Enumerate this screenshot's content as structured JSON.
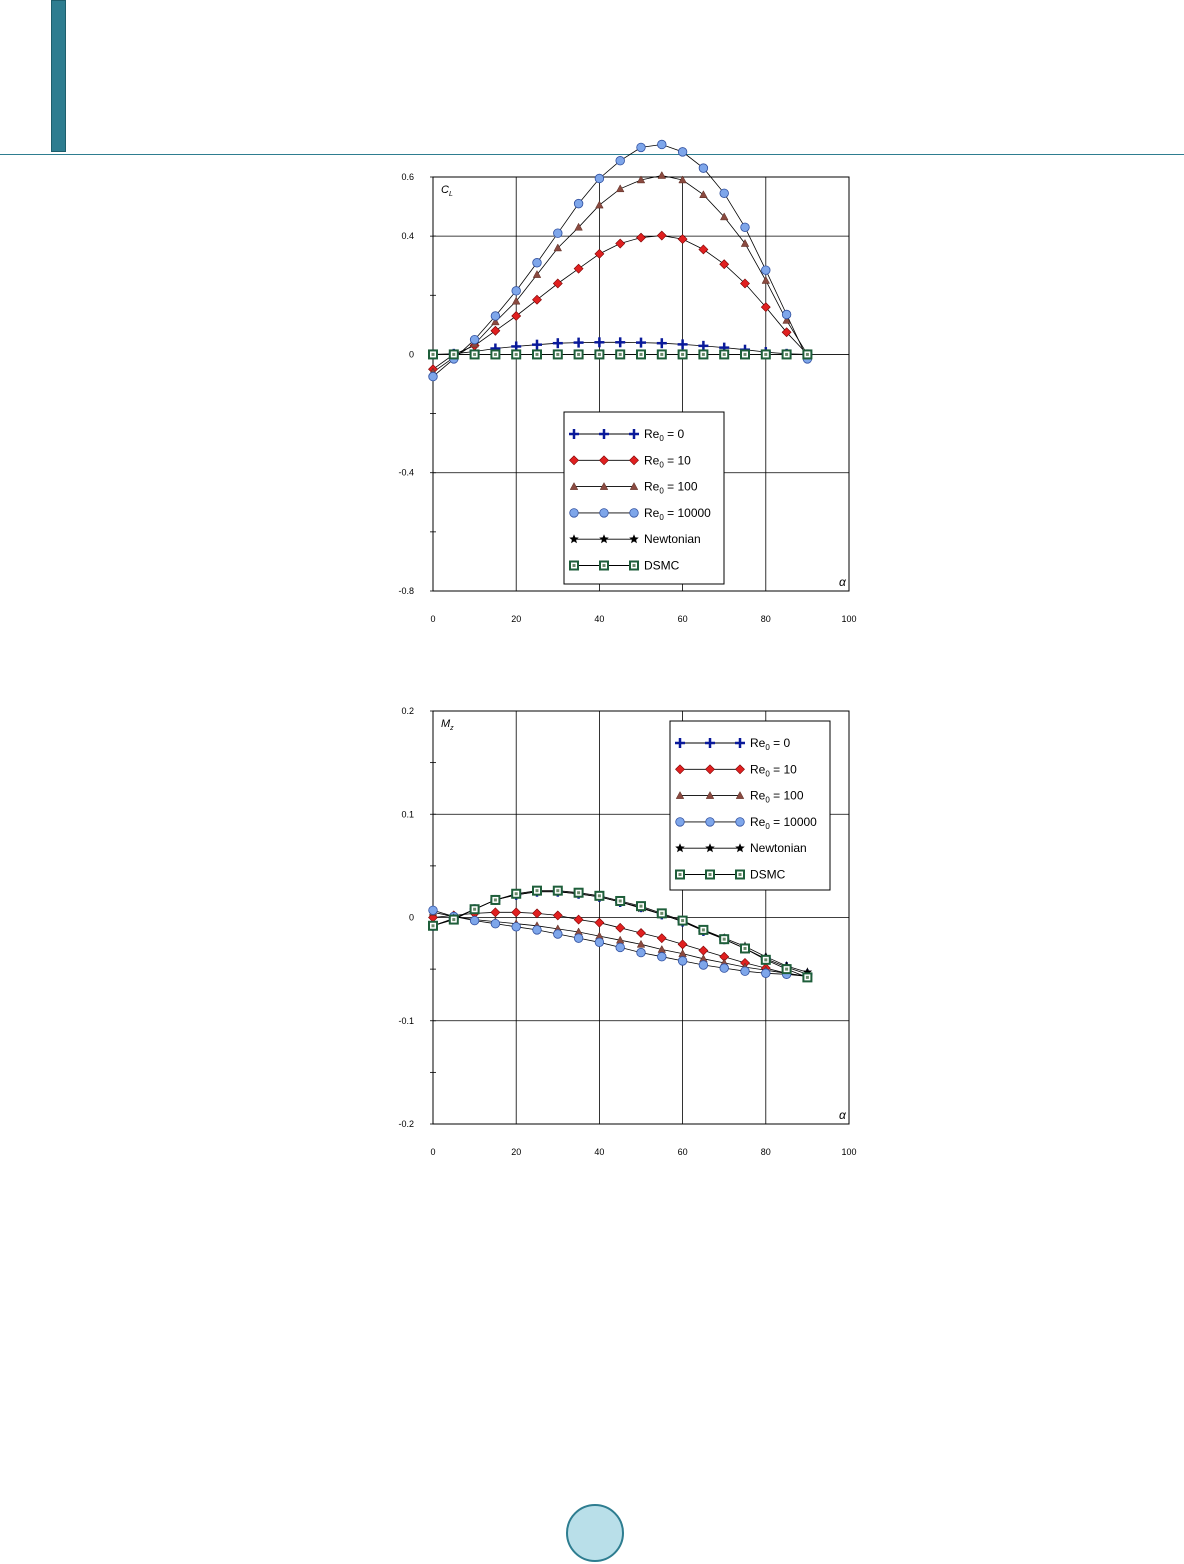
{
  "page": {
    "accent_color": "#2e7d90",
    "badge_fill": "#b9dfe9"
  },
  "chart_data": [
    {
      "type": "line",
      "ylabel_main": "C",
      "ylabel_sub": "L",
      "xlabel": "α",
      "xlim": [
        0,
        100
      ],
      "ylim": [
        -0.8,
        0.6
      ],
      "x_ticks": [
        "0",
        "20",
        "40",
        "60",
        "80",
        "100"
      ],
      "y_ticks": [
        "0.6",
        "0.4",
        "0",
        "-0.4",
        "-0.8"
      ],
      "y_tick_values": [
        0.6,
        0.4,
        0,
        -0.4,
        -0.8
      ],
      "y_minor_step": 0.2,
      "grid": true,
      "legend_position": "center-bottom",
      "x": [
        0,
        5,
        10,
        15,
        20,
        25,
        30,
        35,
        40,
        45,
        50,
        55,
        60,
        65,
        70,
        75,
        80,
        85,
        90
      ],
      "series": [
        {
          "name": "Re",
          "name_sub": "0",
          "name_rest": " = 0",
          "marker": "plus",
          "color": "#0a1a9a",
          "values": [
            0,
            0.002,
            0.01,
            0.02,
            0.027,
            0.033,
            0.038,
            0.04,
            0.041,
            0.041,
            0.04,
            0.038,
            0.034,
            0.029,
            0.023,
            0.016,
            0.008,
            0.002,
            0
          ]
        },
        {
          "name": "Re",
          "name_sub": "0",
          "name_rest": " = 10",
          "marker": "diamond",
          "color": "#e02020",
          "values": [
            -0.05,
            0,
            0.03,
            0.08,
            0.13,
            0.185,
            0.24,
            0.29,
            0.34,
            0.375,
            0.395,
            0.402,
            0.39,
            0.355,
            0.305,
            0.24,
            0.16,
            0.075,
            0
          ]
        },
        {
          "name": "Re",
          "name_sub": "0",
          "name_rest": " = 100",
          "marker": "triangle",
          "color": "#8a4a40",
          "values": [
            -0.06,
            -0.01,
            0.035,
            0.11,
            0.18,
            0.27,
            0.36,
            0.43,
            0.505,
            0.56,
            0.59,
            0.605,
            0.59,
            0.54,
            0.465,
            0.375,
            0.25,
            0.115,
            0
          ]
        },
        {
          "name": "Re",
          "name_sub": "0",
          "name_rest": " = 10000",
          "marker": "circle",
          "color": "#7ea6ea",
          "values": [
            -0.075,
            -0.015,
            0.05,
            0.13,
            0.215,
            0.31,
            0.41,
            0.51,
            0.595,
            0.655,
            0.7,
            0.71,
            0.685,
            0.63,
            0.545,
            0.43,
            0.285,
            0.135,
            -0.015
          ]
        },
        {
          "name": "Newtonian",
          "name_sub": "",
          "name_rest": "",
          "marker": "star",
          "color": "#000000",
          "values": [
            0,
            0,
            0,
            0,
            0,
            0,
            0,
            0,
            0,
            0,
            0,
            0,
            0,
            0,
            0,
            0,
            0,
            0,
            0
          ]
        },
        {
          "name": "DSMC",
          "name_sub": "",
          "name_rest": "",
          "marker": "square",
          "color": "#1e5e3a",
          "values": [
            0,
            0,
            0,
            0,
            0,
            0,
            0,
            0,
            0,
            0,
            0,
            0,
            0,
            0,
            0,
            0,
            0,
            0,
            0
          ]
        }
      ]
    },
    {
      "type": "line",
      "ylabel_main": "M",
      "ylabel_sub": "z",
      "xlabel": "α",
      "xlim": [
        0,
        100
      ],
      "ylim": [
        -0.2,
        0.2
      ],
      "x_ticks": [
        "0",
        "20",
        "40",
        "60",
        "80",
        "100"
      ],
      "y_ticks": [
        "0.2",
        "0.1",
        "0",
        "-0.1",
        "-0.2"
      ],
      "y_tick_values": [
        0.2,
        0.1,
        0,
        -0.1,
        -0.2
      ],
      "y_minor_step": 0.05,
      "grid": true,
      "legend_position": "top-right",
      "x": [
        0,
        5,
        10,
        15,
        20,
        25,
        30,
        35,
        40,
        45,
        50,
        55,
        60,
        65,
        70,
        75,
        80,
        85,
        90
      ],
      "series": [
        {
          "name": "Re",
          "name_sub": "0",
          "name_rest": " = 0",
          "marker": "plus",
          "color": "#0a1a9a",
          "values": [
            -0.008,
            -0.001,
            0.008,
            0.017,
            0.022,
            0.025,
            0.025,
            0.023,
            0.02,
            0.015,
            0.01,
            0.003,
            -0.004,
            -0.013,
            -0.021,
            -0.03,
            -0.04,
            -0.048,
            -0.055
          ]
        },
        {
          "name": "Re",
          "name_sub": "0",
          "name_rest": " = 10",
          "marker": "diamond",
          "color": "#e02020",
          "values": [
            0,
            0.002,
            0.004,
            0.005,
            0.005,
            0.004,
            0.002,
            -0.002,
            -0.005,
            -0.01,
            -0.015,
            -0.02,
            -0.026,
            -0.032,
            -0.038,
            -0.044,
            -0.049,
            -0.054,
            -0.057
          ]
        },
        {
          "name": "Re",
          "name_sub": "0",
          "name_rest": " = 100",
          "marker": "triangle",
          "color": "#8a4a40",
          "values": [
            0.005,
            0.001,
            -0.002,
            -0.004,
            -0.006,
            -0.008,
            -0.011,
            -0.014,
            -0.018,
            -0.022,
            -0.026,
            -0.031,
            -0.035,
            -0.04,
            -0.044,
            -0.048,
            -0.051,
            -0.054,
            -0.057
          ]
        },
        {
          "name": "Re",
          "name_sub": "0",
          "name_rest": " = 10000",
          "marker": "circle",
          "color": "#7ea6ea",
          "values": [
            0.007,
            0.001,
            -0.003,
            -0.006,
            -0.009,
            -0.012,
            -0.016,
            -0.02,
            -0.024,
            -0.029,
            -0.034,
            -0.038,
            -0.042,
            -0.046,
            -0.049,
            -0.052,
            -0.054,
            -0.055,
            -0.057
          ]
        },
        {
          "name": "Newtonian",
          "name_sub": "",
          "name_rest": "",
          "marker": "star",
          "color": "#000000",
          "values": [
            -0.008,
            -0.001,
            0.008,
            0.017,
            0.022,
            0.025,
            0.025,
            0.023,
            0.02,
            0.015,
            0.009,
            0.003,
            -0.004,
            -0.012,
            -0.02,
            -0.028,
            -0.038,
            -0.047,
            -0.053
          ]
        },
        {
          "name": "DSMC",
          "name_sub": "",
          "name_rest": "",
          "marker": "square",
          "color": "#1e5e3a",
          "values": [
            -0.008,
            -0.002,
            0.008,
            0.017,
            0.023,
            0.026,
            0.026,
            0.024,
            0.021,
            0.016,
            0.011,
            0.004,
            -0.003,
            -0.012,
            -0.021,
            -0.03,
            -0.041,
            -0.05,
            -0.058
          ]
        }
      ]
    }
  ]
}
